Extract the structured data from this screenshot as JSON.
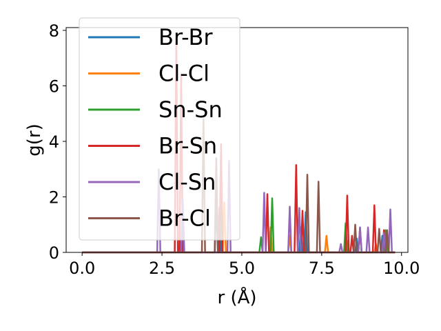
{
  "chart_data": {
    "type": "line",
    "xlabel": "r (Å)",
    "ylabel": "g(r)",
    "xlim": [
      -0.5,
      10.2
    ],
    "ylim": [
      0,
      8.1
    ],
    "xticks": [
      0.0,
      2.5,
      5.0,
      7.5,
      10.0
    ],
    "xtick_labels": [
      "0.0",
      "2.5",
      "5.0",
      "7.5",
      "10.0"
    ],
    "yticks": [
      0,
      2,
      4,
      6,
      8
    ],
    "ytick_labels": [
      "0",
      "2",
      "4",
      "6",
      "8"
    ],
    "grid": false,
    "legend": "upper-left",
    "peak_half_width": 0.05,
    "x_max": 9.8,
    "series": [
      {
        "name": "Br-Br",
        "color": "#1f77b4",
        "peaks": [
          [
            4.2,
            1.9
          ],
          [
            4.3,
            1.6
          ],
          [
            6.85,
            0.9
          ],
          [
            7.0,
            1.45
          ],
          [
            8.6,
            0.5
          ],
          [
            9.4,
            0.6
          ]
        ]
      },
      {
        "name": "Cl-Cl",
        "color": "#ff7f0e",
        "peaks": [
          [
            4.45,
            1.8
          ],
          [
            5.9,
            0.9
          ],
          [
            6.5,
            0.6
          ],
          [
            7.65,
            0.6
          ],
          [
            8.3,
            0.4
          ],
          [
            9.2,
            0.3
          ]
        ]
      },
      {
        "name": "Sn-Sn",
        "color": "#2ca02c",
        "peaks": [
          [
            4.35,
            1.7
          ],
          [
            5.6,
            0.55
          ],
          [
            5.95,
            1.95
          ],
          [
            8.25,
            1.05
          ],
          [
            9.5,
            0.8
          ]
        ]
      },
      {
        "name": "Br-Sn",
        "color": "#d62728",
        "peaks": [
          [
            2.95,
            7.7
          ],
          [
            3.1,
            6.4
          ],
          [
            4.35,
            3.9
          ],
          [
            5.8,
            2.1
          ],
          [
            6.7,
            3.15
          ],
          [
            6.9,
            1.5
          ],
          [
            8.3,
            2.05
          ],
          [
            8.45,
            0.6
          ],
          [
            8.7,
            0.9
          ],
          [
            9.15,
            1.7
          ],
          [
            9.45,
            0.8
          ]
        ]
      },
      {
        "name": "Cl-Sn",
        "color": "#9467bd",
        "peaks": [
          [
            2.4,
            3.0
          ],
          [
            3.15,
            1.9
          ],
          [
            4.6,
            3.3
          ],
          [
            5.7,
            2.15
          ],
          [
            6.5,
            1.65
          ],
          [
            6.8,
            1.6
          ],
          [
            8.1,
            0.3
          ],
          [
            8.7,
            0.9
          ],
          [
            8.95,
            0.9
          ],
          [
            9.45,
            0.7
          ],
          [
            9.65,
            1.55
          ]
        ]
      },
      {
        "name": "Br-Cl",
        "color": "#8c564b",
        "peaks": [
          [
            3.8,
            4.8
          ],
          [
            4.2,
            3.4
          ],
          [
            7.05,
            2.8
          ],
          [
            7.4,
            2.55
          ],
          [
            8.55,
            1.0
          ],
          [
            9.3,
            0.85
          ],
          [
            9.55,
            0.8
          ]
        ]
      }
    ]
  }
}
